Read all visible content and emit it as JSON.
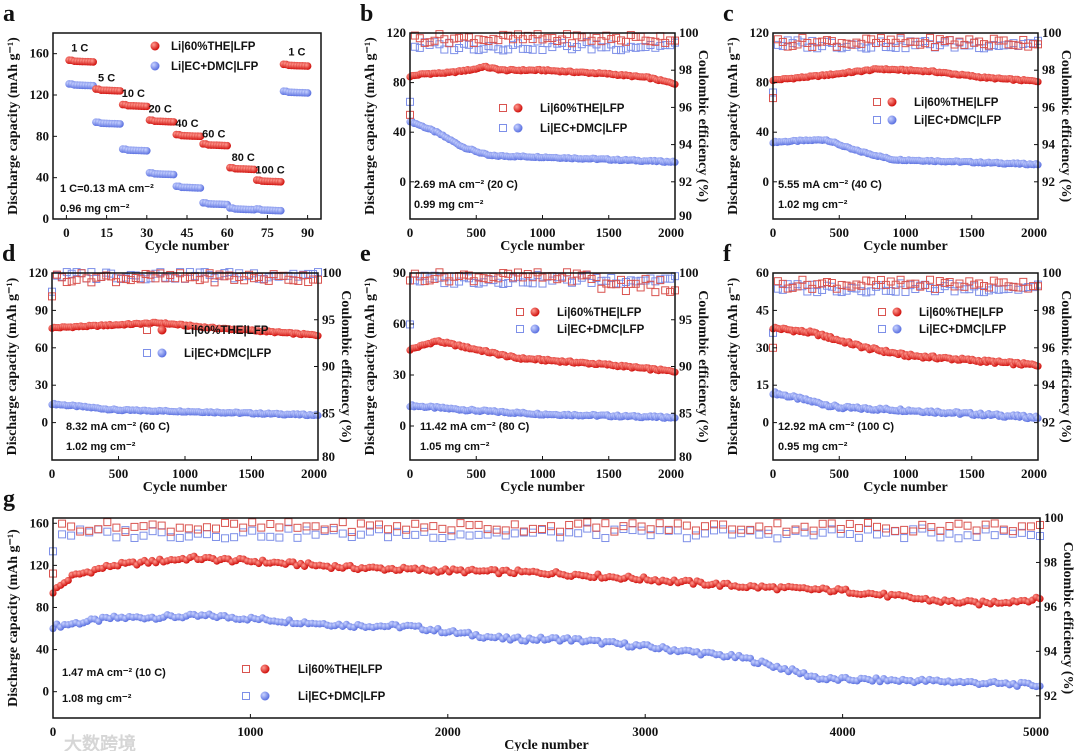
{
  "colors": {
    "red": "#e0201a",
    "blue": "#6f83e8",
    "red_open": "#d9534f",
    "blue_open": "#7d8fe8"
  },
  "watermark": "大数跨境",
  "chart_data": [
    {
      "id": "a",
      "type": "scatter",
      "label": "a",
      "xlabel": "Cycle number",
      "ylabel": "Discharge capacity (mAh g⁻¹)",
      "xlim": [
        -5,
        95
      ],
      "ylim": [
        0,
        180
      ],
      "xticks": [
        0,
        15,
        30,
        45,
        60,
        75,
        90
      ],
      "yticks": [
        0,
        40,
        80,
        120,
        160
      ],
      "legend": [
        "Li|60%THE|LFP",
        "Li|EC+DMC|LFP"
      ],
      "annotations": [
        "1 C=0.13 mA cm⁻²",
        "0.96 mg cm⁻²"
      ],
      "steps": {
        "red": [
          153,
          125,
          110,
          95,
          81,
          72,
          49,
          37,
          149
        ],
        "blue": [
          130,
          93,
          67,
          44,
          31,
          15,
          10,
          9,
          123
        ]
      },
      "rate_labels": [
        {
          "t": "1 C",
          "x": 5,
          "y": 162
        },
        {
          "t": "5 C",
          "x": 15,
          "y": 133
        },
        {
          "t": "10 C",
          "x": 25,
          "y": 118
        },
        {
          "t": "20 C",
          "x": 35,
          "y": 103
        },
        {
          "t": "40 C",
          "x": 45,
          "y": 89
        },
        {
          "t": "60 C",
          "x": 55,
          "y": 79
        },
        {
          "t": "80 C",
          "x": 66,
          "y": 56
        },
        {
          "t": "100 C",
          "x": 76,
          "y": 44
        },
        {
          "t": "1 C",
          "x": 86,
          "y": 158
        }
      ]
    },
    {
      "id": "b",
      "type": "scatter",
      "label": "b",
      "xlabel": "Cycle number",
      "ylabel": "Discharge capacity (mAh g⁻¹)",
      "y2label": "Coulombic efficiency (%)",
      "xlim": [
        0,
        2000
      ],
      "ylim": [
        -30,
        120
      ],
      "y2lim": [
        90,
        100
      ],
      "xticks": [
        0,
        500,
        1000,
        1500,
        2000
      ],
      "yticks": [
        0,
        40,
        80,
        120
      ],
      "y2ticks": [
        90,
        92,
        94,
        96,
        98,
        100
      ],
      "legend": [
        "Li|60%THE|LFP",
        "Li|EC+DMC|LFP"
      ],
      "annotations": [
        "2.69 mA cm⁻² (20 C)",
        "0.99 mg cm⁻²"
      ],
      "capacity": {
        "red": [
          [
            0,
            85
          ],
          [
            100,
            87
          ],
          [
            300,
            88
          ],
          [
            500,
            91
          ],
          [
            550,
            93
          ],
          [
            700,
            90
          ],
          [
            1000,
            90
          ],
          [
            1500,
            87
          ],
          [
            1800,
            84
          ],
          [
            2000,
            79
          ]
        ],
        "blue": [
          [
            0,
            49
          ],
          [
            200,
            40
          ],
          [
            400,
            28
          ],
          [
            600,
            21
          ],
          [
            1000,
            20
          ],
          [
            1500,
            18
          ],
          [
            2000,
            16
          ]
        ]
      },
      "ce": {
        "red": 99.7,
        "blue": 99.3,
        "red_first": 95.6,
        "blue_first": 96.3
      }
    },
    {
      "id": "c",
      "type": "scatter",
      "label": "c",
      "xlabel": "Cycle number",
      "ylabel": "Discharge capacity (mAh g⁻¹)",
      "y2label": "Coulombic efficiency (%)",
      "xlim": [
        0,
        2000
      ],
      "ylim": [
        -30,
        120
      ],
      "y2lim": [
        90,
        100
      ],
      "xticks": [
        0,
        500,
        1000,
        1500,
        2000
      ],
      "yticks": [
        0,
        40,
        80,
        120
      ],
      "y2ticks": [
        92,
        94,
        96,
        98,
        100
      ],
      "legend": [
        "Li|60%THE|LFP",
        "Li|EC+DMC|LFP"
      ],
      "annotations": [
        "5.55 mA cm⁻² (40 C)",
        "1.02 mg cm⁻²"
      ],
      "capacity": {
        "red": [
          [
            0,
            82
          ],
          [
            400,
            86
          ],
          [
            800,
            91
          ],
          [
            1200,
            89
          ],
          [
            1600,
            84
          ],
          [
            2000,
            81
          ]
        ],
        "blue": [
          [
            0,
            32
          ],
          [
            400,
            34
          ],
          [
            600,
            26
          ],
          [
            900,
            18
          ],
          [
            2000,
            14
          ]
        ]
      },
      "ce": {
        "red": 99.5,
        "blue": 99.4,
        "red_first": 96.5,
        "blue_first": 96.8
      }
    },
    {
      "id": "d",
      "type": "scatter",
      "label": "d",
      "xlabel": "Cycle number",
      "ylabel": "Discharge capacity (mAh g⁻¹)",
      "y2label": "Coulombic efficiency (%)",
      "xlim": [
        0,
        2000
      ],
      "ylim": [
        -30,
        120
      ],
      "y2lim": [
        80,
        100
      ],
      "xticks": [
        0,
        500,
        1000,
        1500,
        2000
      ],
      "yticks": [
        0,
        30,
        60,
        90,
        120
      ],
      "y2ticks": [
        80,
        85,
        90,
        95,
        100
      ],
      "legend": [
        "Li|60%THE|LFP",
        "Li|EC+DMC|LFP"
      ],
      "annotations": [
        "8.32 mA cm⁻² (60 C)",
        "1.02 mg cm⁻²"
      ],
      "capacity": {
        "red": [
          [
            0,
            76
          ],
          [
            800,
            80
          ],
          [
            1200,
            76
          ],
          [
            1500,
            74
          ],
          [
            2000,
            70
          ]
        ],
        "blue": [
          [
            0,
            15
          ],
          [
            500,
            10
          ],
          [
            1000,
            9
          ],
          [
            2000,
            6
          ]
        ]
      },
      "ce": {
        "red": 99.5,
        "blue": 99.8,
        "red_first": 97.5,
        "blue_first": 98
      }
    },
    {
      "id": "e",
      "type": "scatter",
      "label": "e",
      "xlabel": "Cycle number",
      "ylabel": "Discharge capacity (mAh g⁻¹)",
      "y2label": "Coulombic efficiency (%)",
      "xlim": [
        0,
        2000
      ],
      "ylim": [
        -20,
        90
      ],
      "y2lim": [
        80,
        100
      ],
      "xticks": [
        0,
        500,
        1000,
        1500,
        2000
      ],
      "yticks": [
        0,
        30,
        60,
        90
      ],
      "y2ticks": [
        80,
        85,
        90,
        95,
        100
      ],
      "legend": [
        "Li|60%THE|LFP",
        "Li|EC+DMC|LFP"
      ],
      "annotations": [
        "11.42 mA cm⁻² (80 C)",
        "1.05 mg cm⁻²"
      ],
      "capacity": {
        "red": [
          [
            0,
            45
          ],
          [
            200,
            50
          ],
          [
            500,
            45
          ],
          [
            800,
            40
          ],
          [
            1500,
            36
          ],
          [
            2000,
            32
          ]
        ],
        "blue": [
          [
            0,
            12
          ],
          [
            500,
            9
          ],
          [
            1000,
            7
          ],
          [
            2000,
            5
          ]
        ]
      },
      "ce": {
        "red": 99.6,
        "blue": 99.3,
        "red_first": 99.2,
        "blue_first": 94.5
      }
    },
    {
      "id": "f",
      "type": "scatter",
      "label": "f",
      "xlabel": "Cycle number",
      "ylabel": "Discharge capacity (mAh g⁻¹)",
      "y2label": "Coulombic efficiency (%)",
      "xlim": [
        0,
        2000
      ],
      "ylim": [
        -15,
        60
      ],
      "y2lim": [
        90,
        100
      ],
      "xticks": [
        0,
        500,
        1000,
        1500,
        2000
      ],
      "yticks": [
        0,
        15,
        30,
        45,
        60
      ],
      "y2ticks": [
        92,
        94,
        96,
        98,
        100
      ],
      "legend": [
        "Li|60%THE|LFP",
        "Li|EC+DMC|LFP"
      ],
      "annotations": [
        "12.92 mA cm⁻² (100 C)",
        "0.95 mg cm⁻²"
      ],
      "capacity": {
        "red": [
          [
            0,
            38
          ],
          [
            300,
            36
          ],
          [
            700,
            30
          ],
          [
            1000,
            27
          ],
          [
            1500,
            25
          ],
          [
            2000,
            23
          ]
        ],
        "blue": [
          [
            0,
            12
          ],
          [
            500,
            6
          ],
          [
            1000,
            5
          ],
          [
            2000,
            2
          ]
        ]
      },
      "ce": {
        "red": 99.4,
        "blue": 99.2,
        "red_first": 96,
        "blue_first": 96.8
      }
    },
    {
      "id": "g",
      "type": "scatter",
      "label": "g",
      "xlabel": "Cycle number",
      "ylabel": "Discharge capacity (mAh g⁻¹)",
      "y2label": "Coulombic efficiency (%)",
      "xlim": [
        0,
        5000
      ],
      "ylim": [
        -25,
        165
      ],
      "y2lim": [
        91,
        100
      ],
      "xticks": [
        0,
        1000,
        2000,
        3000,
        4000,
        5000
      ],
      "yticks": [
        0,
        40,
        80,
        120,
        160
      ],
      "y2ticks": [
        92,
        94,
        96,
        98,
        100
      ],
      "legend": [
        "Li|60%THE|LFP",
        "Li|EC+DMC|LFP"
      ],
      "annotations": [
        "1.47 mA cm⁻² (10 C)",
        "1.08 mg cm⁻²"
      ],
      "capacity": {
        "red": [
          [
            0,
            95
          ],
          [
            100,
            110
          ],
          [
            300,
            120
          ],
          [
            700,
            127
          ],
          [
            1000,
            124
          ],
          [
            1500,
            118
          ],
          [
            2000,
            115
          ],
          [
            2500,
            113
          ],
          [
            3000,
            107
          ],
          [
            3500,
            100
          ],
          [
            4000,
            96
          ],
          [
            4500,
            86
          ],
          [
            4700,
            84
          ],
          [
            5000,
            88
          ]
        ],
        "blue": [
          [
            0,
            62
          ],
          [
            300,
            70
          ],
          [
            800,
            72
          ],
          [
            1500,
            63
          ],
          [
            1800,
            62
          ],
          [
            2000,
            57
          ],
          [
            2300,
            50
          ],
          [
            2600,
            50
          ],
          [
            3000,
            43
          ],
          [
            3500,
            32
          ],
          [
            3900,
            12
          ],
          [
            4500,
            10
          ],
          [
            5000,
            6
          ]
        ]
      },
      "ce": {
        "red": 99.6,
        "blue": 99.3,
        "red_first": 97.5,
        "blue_first": 98.5
      }
    }
  ]
}
